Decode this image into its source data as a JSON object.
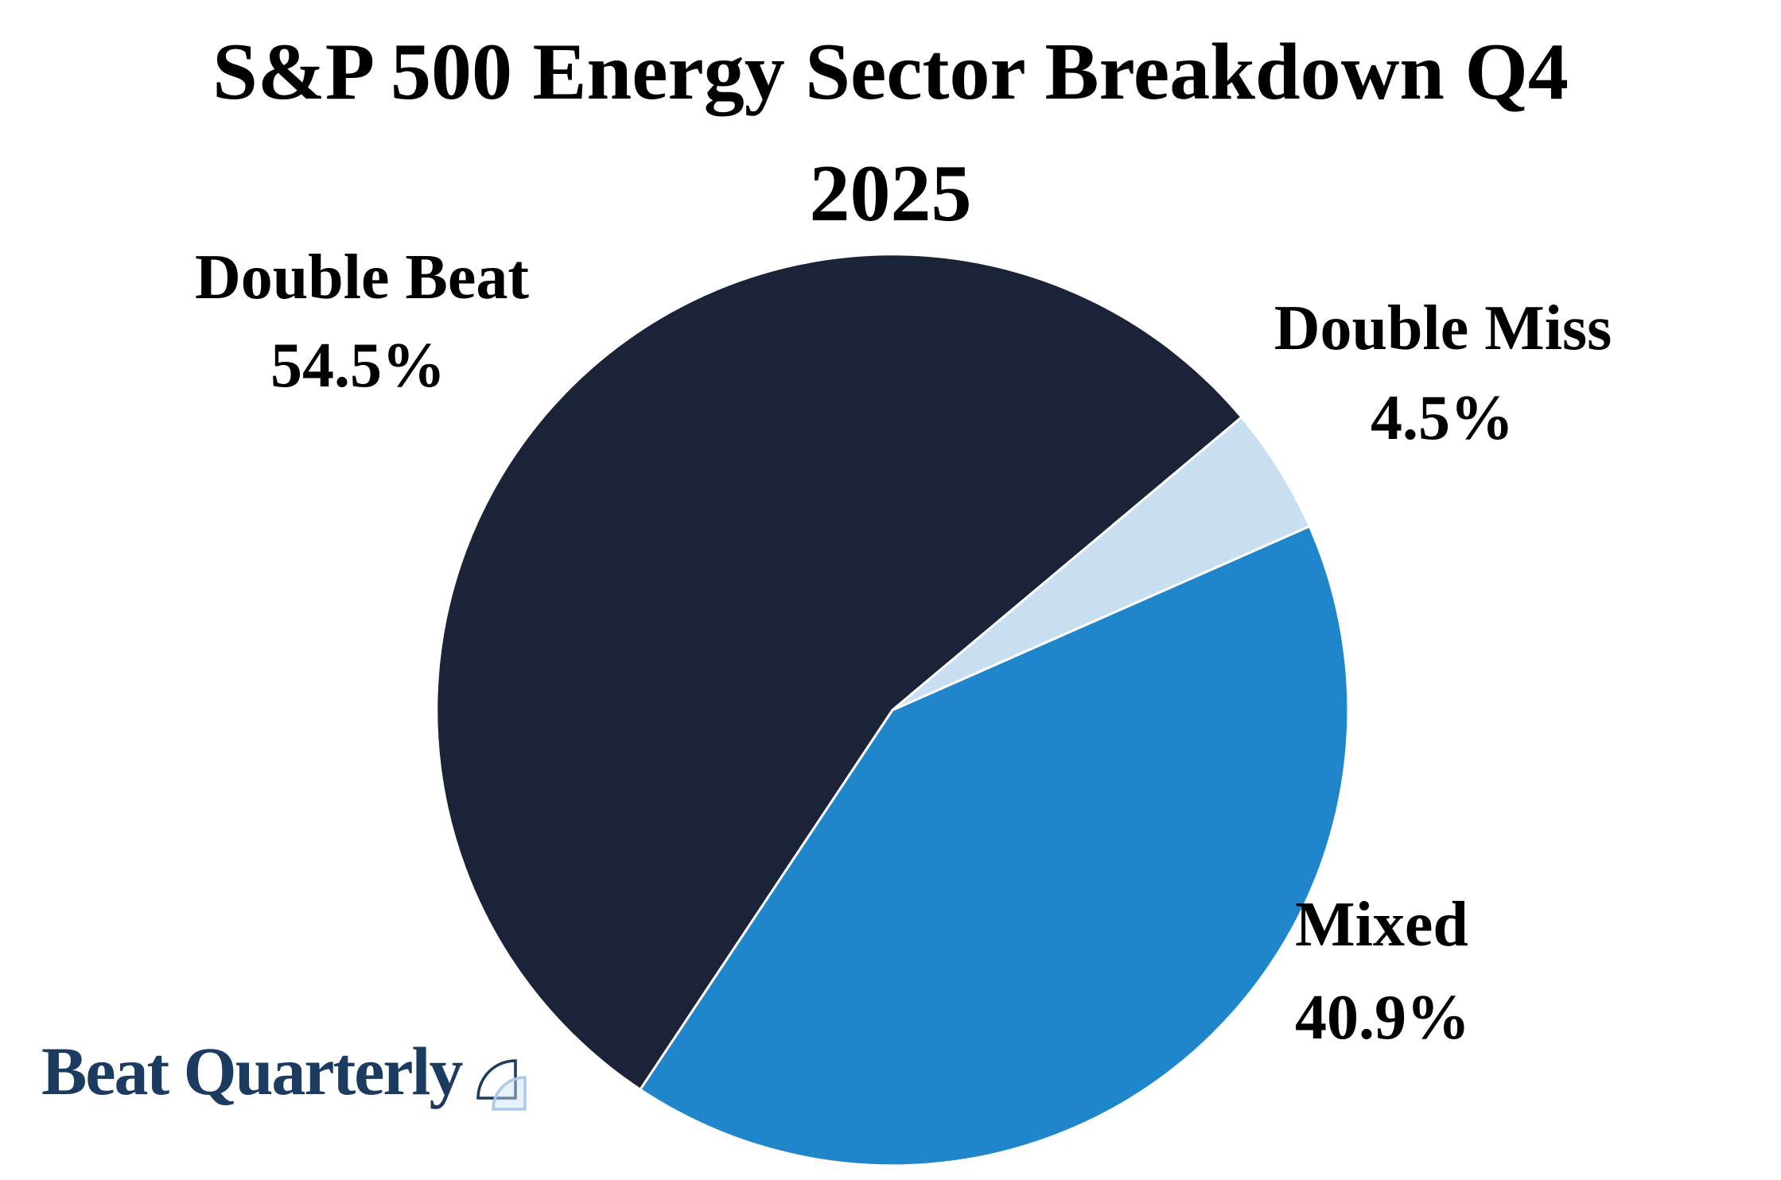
{
  "title": {
    "line1": "S&P 500 Energy Sector Breakdown Q4",
    "line2": "2025"
  },
  "chart_data": {
    "type": "pie",
    "title": "S&P 500 Energy Sector Breakdown Q4 2025",
    "start_angle_deg": 40,
    "direction": "counterclockwise",
    "legend_position": "none",
    "labels_position": "outside",
    "slice_border_color": "#ffffff",
    "slices": [
      {
        "label": "Double Beat",
        "value": 54.5,
        "pct_label": "54.5%",
        "color": "#1b2339"
      },
      {
        "label": "Mixed",
        "value": 40.9,
        "pct_label": "40.9%",
        "color": "#2086cb"
      },
      {
        "label": "Double Miss",
        "value": 4.5,
        "pct_label": "4.5%",
        "color": "#c8dff2"
      }
    ]
  },
  "logo": {
    "text": "Beat Quarterly",
    "color": "#1c3b60",
    "icon": "quarter-circle-pair-icon",
    "icon_accent_color": "#a9cae8"
  },
  "background_color": "#ffffff"
}
